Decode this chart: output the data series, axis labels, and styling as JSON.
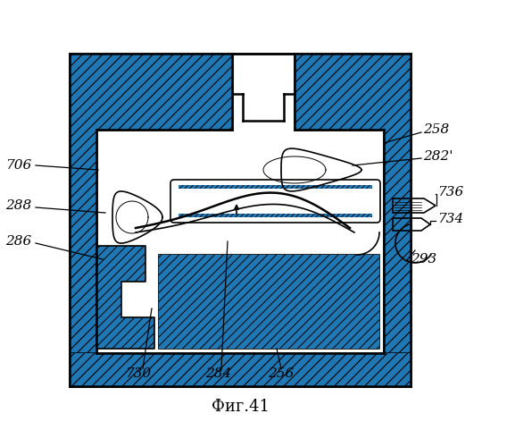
{
  "title": "Фиг.41",
  "bg_color": "#ffffff",
  "line_color": "#000000",
  "fig_width": 5.77,
  "fig_height": 5.0,
  "dpi": 100
}
